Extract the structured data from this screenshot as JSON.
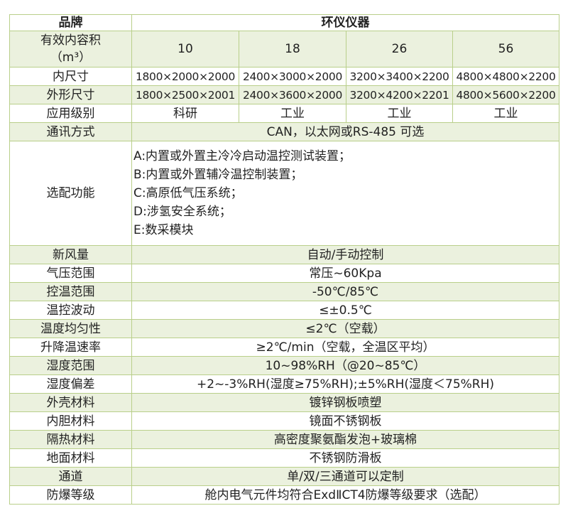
{
  "brand": {
    "label": "品牌",
    "value": "环仪仪器"
  },
  "volume": {
    "label": "有效内容积",
    "unit": "（m³）",
    "values": [
      "10",
      "18",
      "26",
      "56"
    ]
  },
  "inner_size": {
    "label": "内尺寸",
    "values": [
      "1800×2000×2000",
      "2400×3000×2000",
      "3200×3400×2200",
      "4800×4800×2200"
    ]
  },
  "outer_size": {
    "label": "外形尺寸",
    "values": [
      "1800×2500×2001",
      "2400×3600×2000",
      "3200×4200×2201",
      "4800×5600×2200"
    ]
  },
  "application": {
    "label": "应用级别",
    "values": [
      "科研",
      "工业",
      "工业",
      "工业"
    ]
  },
  "communication": {
    "label": "通讯方式",
    "value": "CAN，以太网或RS-485 可选"
  },
  "options": {
    "label": "选配功能",
    "items": [
      "A:内置或外置主冷冷启动温控测试装置；",
      "B:内置或外置辅冷温控制装置；",
      "C:高原低气压系统；",
      "D:涉氢安全系统；",
      "E:数采模块"
    ]
  },
  "rows": [
    {
      "label": "新风量",
      "value": "自动/手动控制"
    },
    {
      "label": "气压范围",
      "value": "常压~60Kpa"
    },
    {
      "label": "控温范围",
      "value": "-50℃/85℃"
    },
    {
      "label": "温控波动",
      "value": "≤±0.5℃"
    },
    {
      "label": "温度均匀性",
      "value": "≤2℃（空载）"
    },
    {
      "label": "升降温速率",
      "value": "≥2℃/min（空载，全温区平均）"
    },
    {
      "label": "湿度范围",
      "value": "10~98%RH（@20~85℃）"
    },
    {
      "label": "湿度偏差",
      "value": "+2~-3%RH(湿度≥75%RH);±5%RH(湿度＜75%RH)"
    },
    {
      "label": "外壳材料",
      "value": "镀锌钢板喷塑"
    },
    {
      "label": "内胆材料",
      "value": "镜面不锈钢板"
    },
    {
      "label": "隔热材料",
      "value": "高密度聚氨酯发泡+玻璃棉"
    },
    {
      "label": "地面材料",
      "value": "不锈钢防滑板"
    },
    {
      "label": "通道",
      "value": "单/双/三通道可以定制"
    },
    {
      "label": "防爆等级",
      "value": "舱内电气元件均符合ExdⅡCT4防爆等级要求（选配）"
    }
  ],
  "colors": {
    "row_alt": "#ebf1de",
    "border": "#b9cf8a"
  }
}
